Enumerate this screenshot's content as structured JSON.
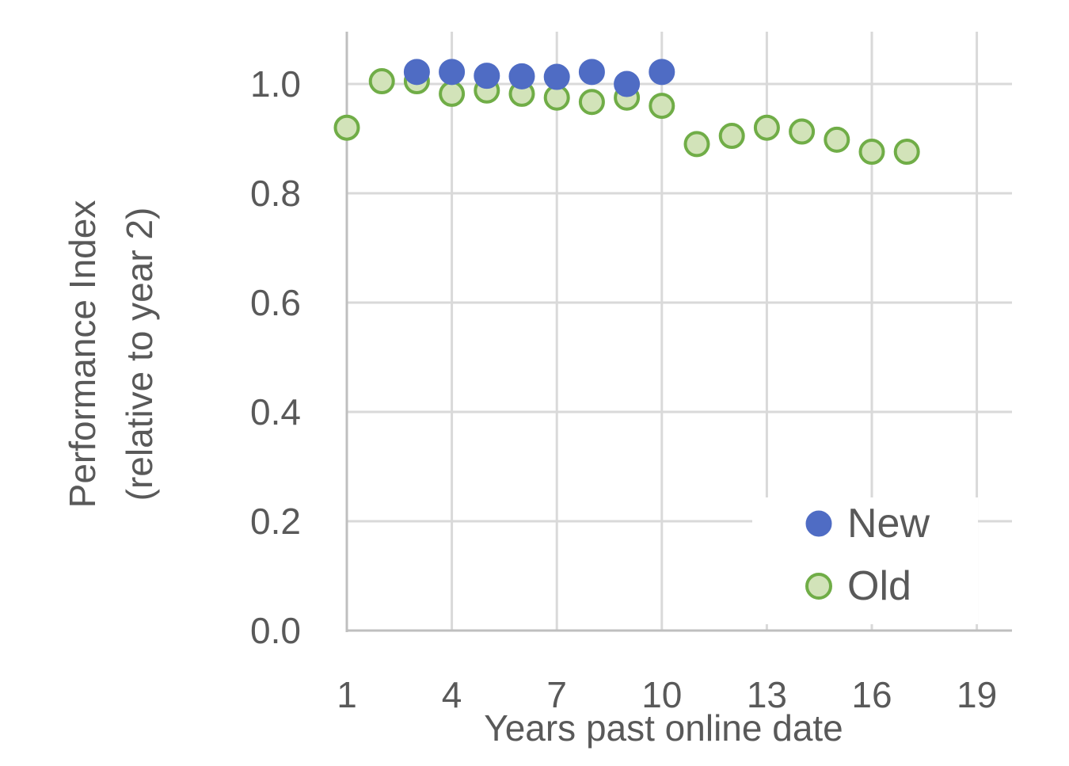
{
  "chart_data": {
    "type": "scatter",
    "xlabel": "Years past online  date",
    "ylabel_line1": "Performance Index",
    "ylabel_line2": "(relative to year 2)",
    "xlim": [
      1,
      20
    ],
    "ylim": [
      0,
      1.0
    ],
    "x_ticks": [
      1,
      4,
      7,
      10,
      13,
      16,
      19
    ],
    "y_ticks": [
      "0.0",
      "0.2",
      "0.4",
      "0.6",
      "0.8",
      "1.0"
    ],
    "y_tick_values": [
      0,
      0.2,
      0.4,
      0.6,
      0.8,
      1.0
    ],
    "grid": true,
    "legend_position": "bottom-right",
    "series": [
      {
        "name": "New",
        "fill": "#4f6cc4",
        "stroke": "#4f6cc4",
        "points": [
          [
            3,
            1.022
          ],
          [
            4,
            1.022
          ],
          [
            5,
            1.015
          ],
          [
            6,
            1.014
          ],
          [
            7,
            1.013
          ],
          [
            8,
            1.022
          ],
          [
            9,
            1.0
          ],
          [
            10,
            1.022
          ]
        ]
      },
      {
        "name": "Old",
        "fill": "#d2e3b9",
        "stroke": "#70ad47",
        "points": [
          [
            1,
            0.92
          ],
          [
            2,
            1.005
          ],
          [
            3,
            1.005
          ],
          [
            4,
            0.982
          ],
          [
            5,
            0.988
          ],
          [
            6,
            0.982
          ],
          [
            7,
            0.975
          ],
          [
            8,
            0.967
          ],
          [
            9,
            0.975
          ],
          [
            10,
            0.96
          ],
          [
            11,
            0.89
          ],
          [
            12,
            0.905
          ],
          [
            13,
            0.92
          ],
          [
            14,
            0.913
          ],
          [
            15,
            0.898
          ],
          [
            16,
            0.876
          ],
          [
            17,
            0.876
          ]
        ]
      }
    ]
  }
}
